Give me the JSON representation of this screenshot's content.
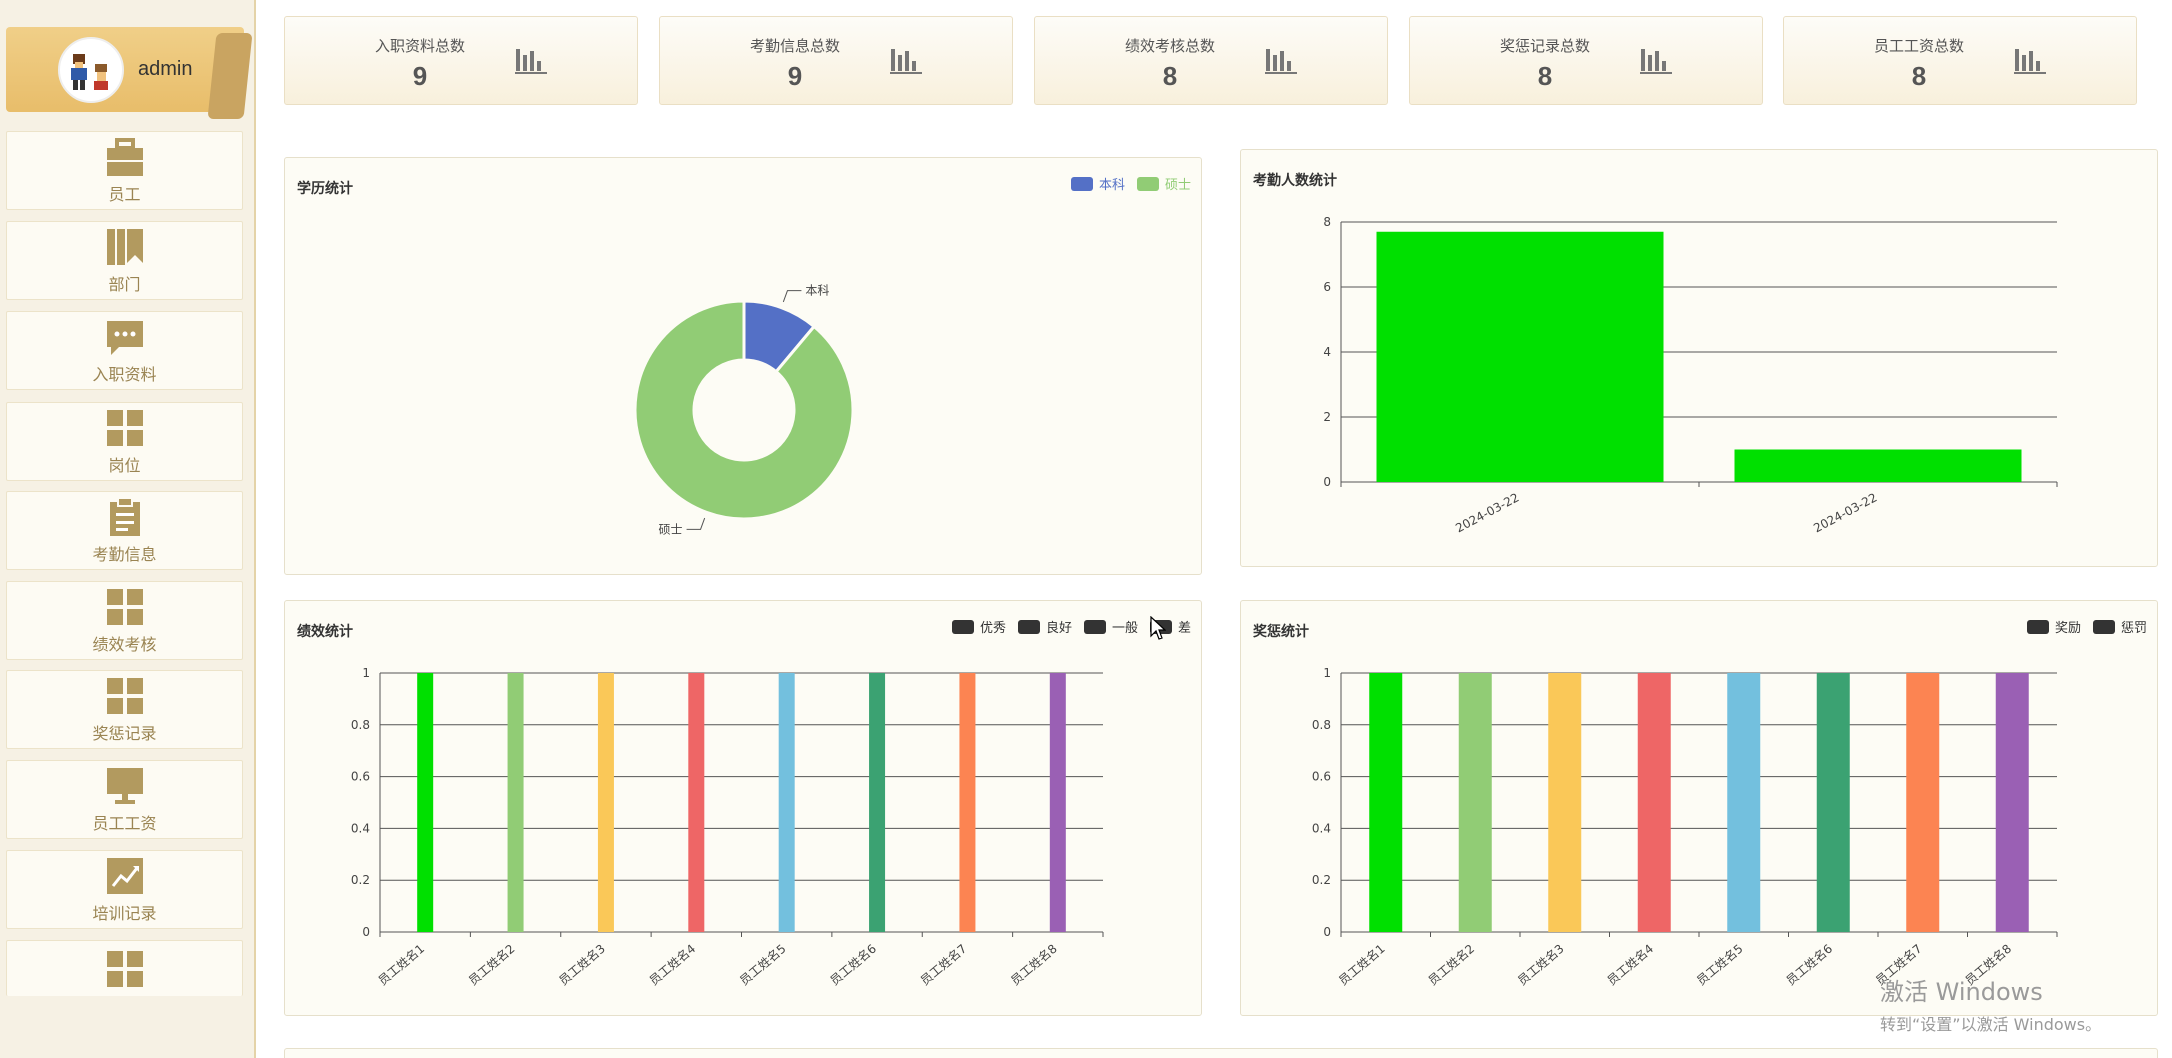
{
  "user": {
    "name": "admin",
    "avatar_icon": "pixel-character-avatar"
  },
  "menu": [
    {
      "label": "员工",
      "icon": "briefcase-icon"
    },
    {
      "label": "部门",
      "icon": "book-icon"
    },
    {
      "label": "入职资料",
      "icon": "chat-bubble-icon"
    },
    {
      "label": "岗位",
      "icon": "grid-icon"
    },
    {
      "label": "考勤信息",
      "icon": "clipboard-icon"
    },
    {
      "label": "绩效考核",
      "icon": "grid-icon"
    },
    {
      "label": "奖惩记录",
      "icon": "grid-icon"
    },
    {
      "label": "员工工资",
      "icon": "monitor-icon"
    },
    {
      "label": "培训记录",
      "icon": "trend-chart-icon"
    },
    {
      "label": "",
      "icon": "grid-icon"
    }
  ],
  "stats": [
    {
      "label": "入职资料总数",
      "value": "9"
    },
    {
      "label": "考勤信息总数",
      "value": "9"
    },
    {
      "label": "绩效考核总数",
      "value": "8"
    },
    {
      "label": "奖惩记录总数",
      "value": "8"
    },
    {
      "label": "员工工资总数",
      "value": "8"
    }
  ],
  "colors": {
    "accent": "#e8bd6a",
    "menu_icon": "#b29a5f",
    "bar_green": "#00e000",
    "edu_bachelor": "#5470c6",
    "edu_master": "#91cc75",
    "legend_dark": "#333333"
  },
  "panels": {
    "education": {
      "title": "学历统计"
    },
    "attendance": {
      "title": "考勤人数统计"
    },
    "performance": {
      "title": "绩效统计"
    },
    "reward": {
      "title": "奖惩统计"
    }
  },
  "chart_data": [
    {
      "type": "pie",
      "title": "学历统计",
      "variant": "donut",
      "legend_position": "top-right",
      "slices": [
        {
          "name": "本科",
          "value": 1
        },
        {
          "name": "硕士",
          "value": 8
        }
      ]
    },
    {
      "type": "bar",
      "title": "考勤人数统计",
      "categories": [
        "2024-03-22",
        "2024-03-22"
      ],
      "values": [
        7.7,
        1
      ],
      "ylim": [
        0,
        8
      ],
      "yticks": [
        0,
        2,
        4,
        6,
        8
      ],
      "grid": true,
      "color": "#00e000"
    },
    {
      "type": "bar",
      "title": "绩效统计",
      "legend": [
        "优秀",
        "良好",
        "一般",
        "差"
      ],
      "legend_position": "top-right",
      "categories": [
        "员工姓名1",
        "员工姓名2",
        "员工姓名3",
        "员工姓名4",
        "员工姓名5",
        "员工姓名6",
        "员工姓名7",
        "员工姓名8"
      ],
      "values": [
        1,
        1,
        1,
        1,
        1,
        1,
        1,
        1
      ],
      "ylim": [
        0,
        1
      ],
      "yticks": [
        0,
        0.2,
        0.4,
        0.6,
        0.8,
        1
      ],
      "grid": true,
      "colors": [
        "#00e000",
        "#91cc75",
        "#fac858",
        "#ee6666",
        "#73c0de",
        "#3ba272",
        "#fc8452",
        "#9a60b4"
      ]
    },
    {
      "type": "bar",
      "title": "奖惩统计",
      "legend": [
        "奖励",
        "惩罚"
      ],
      "legend_position": "top-right",
      "categories": [
        "员工姓名1",
        "员工姓名2",
        "员工姓名3",
        "员工姓名4",
        "员工姓名5",
        "员工姓名6",
        "员工姓名7",
        "员工姓名8"
      ],
      "values": [
        1,
        1,
        1,
        1,
        1,
        1,
        1,
        1
      ],
      "ylim": [
        0,
        1
      ],
      "yticks": [
        0,
        0.2,
        0.4,
        0.6,
        0.8,
        1
      ],
      "grid": true,
      "colors": [
        "#00e000",
        "#91cc75",
        "#fac858",
        "#ee6666",
        "#73c0de",
        "#3ba272",
        "#fc8452",
        "#9a60b4"
      ]
    }
  ],
  "watermark": {
    "line1": "激活 Windows",
    "line2": "转到“设置”以激活 Windows。"
  }
}
